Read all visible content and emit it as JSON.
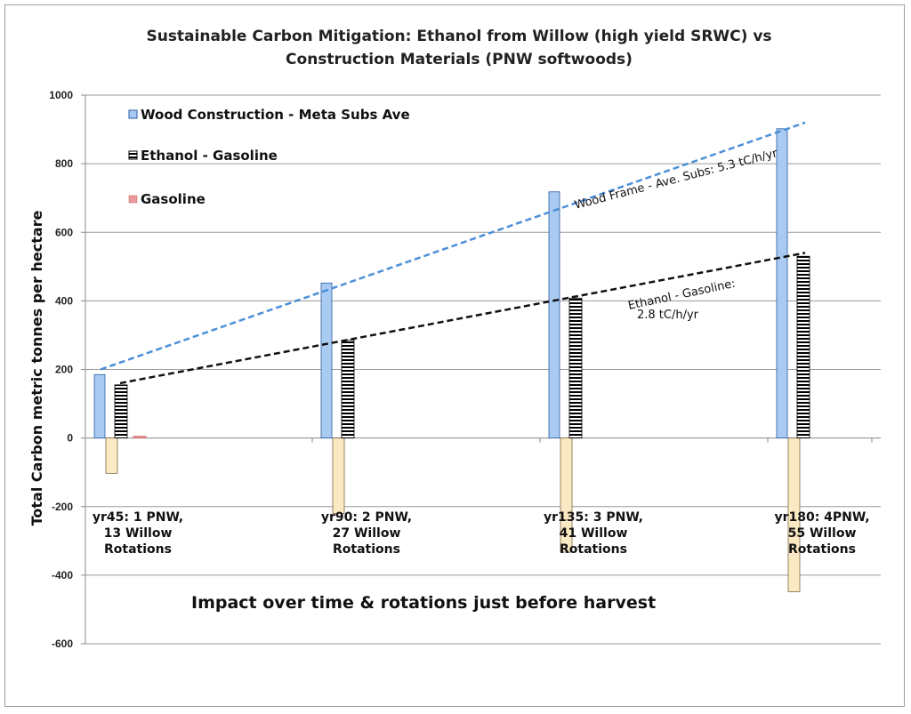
{
  "chart_data": {
    "type": "bar",
    "title_line1": "Sustainable Carbon Mitigation: Ethanol from Willow (high yield SRWC)  vs",
    "title_line2": "Construction Materials (PNW softwoods)",
    "ylabel": "Total Carbon metric tonnes per hectare",
    "xlabel": "Impact over time & rotations just before harvest",
    "ylim": [
      -600,
      1000
    ],
    "yticks": [
      "1000",
      "800",
      "600",
      "400",
      "200",
      "0",
      "-200",
      "-400",
      "-600"
    ],
    "grid": true,
    "categories": [
      [
        "yr45: 1 PNW,",
        "13 Willow",
        "Rotations"
      ],
      [
        "yr90: 2 PNW,",
        "27 Willow",
        "Rotations"
      ],
      [
        "yr135: 3 PNW,",
        "41 Willow",
        "Rotations"
      ],
      [
        "yr180: 4PNW,",
        "55 Willow",
        "Rotations"
      ]
    ],
    "series": [
      {
        "name": "Wood Construction - Meta Subs Ave",
        "color": "#a9cbf2",
        "values": [
          185,
          452,
          718,
          902
        ]
      },
      {
        "name": "",
        "color": "#fbe9c4",
        "values": [
          -103,
          -220,
          -333,
          -448
        ]
      },
      {
        "name": "Ethanol - Gasoline",
        "color": "#000000",
        "values": [
          155,
          285,
          408,
          530
        ]
      },
      {
        "name": "Gasoline",
        "color": "#ea9a9a",
        "values": [
          5,
          0,
          0,
          0
        ]
      }
    ],
    "legend_position": "top-left",
    "trendlines": [
      {
        "label": "Wood Frame - Ave. Subs: 5.3 tC/h/yr",
        "color": "#4a8fd8",
        "from": [
          0,
          200
        ],
        "to": [
          3,
          920
        ]
      },
      {
        "label_line1": "Ethanol - Gasoline:",
        "label_line2": "2.8 tC/h/yr",
        "color": "#111111",
        "from": [
          0,
          160
        ],
        "to": [
          3,
          540
        ]
      }
    ]
  }
}
